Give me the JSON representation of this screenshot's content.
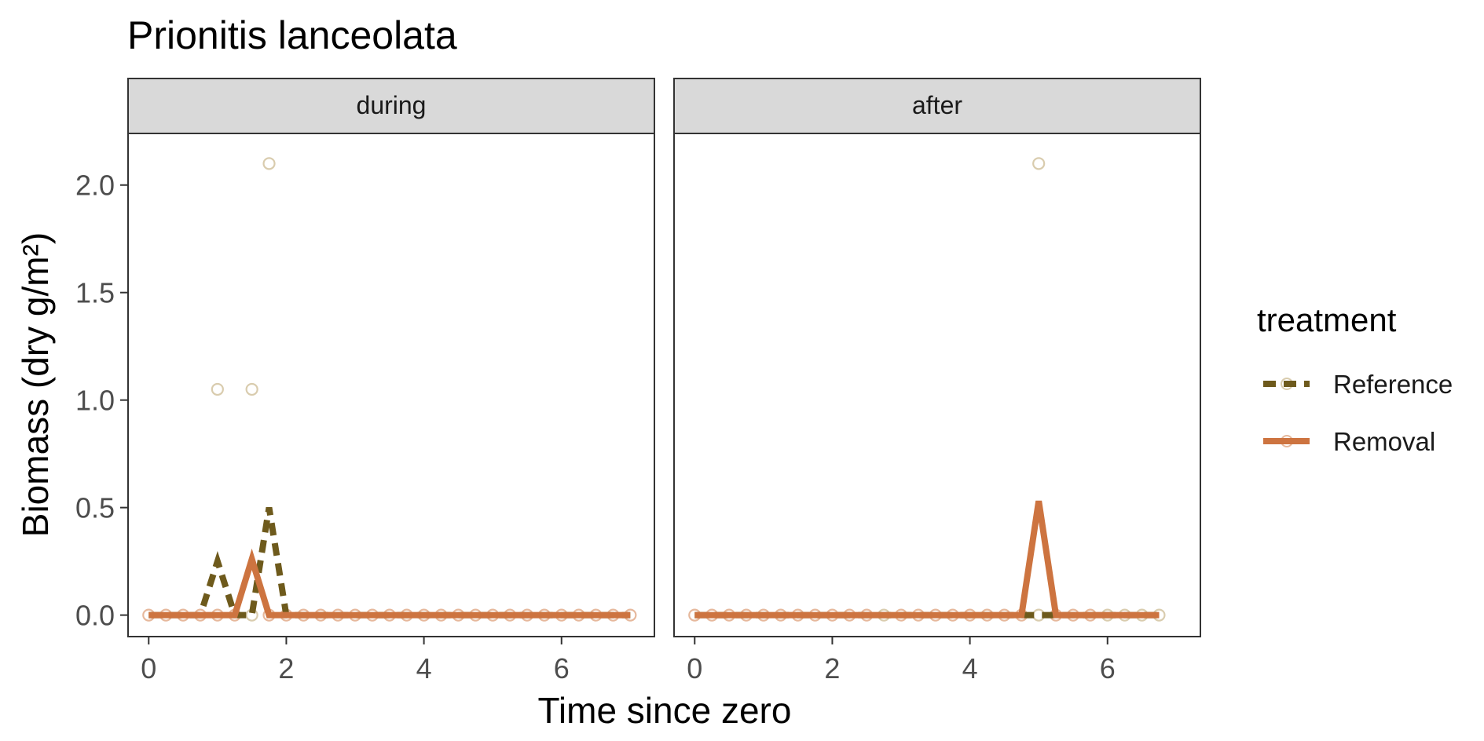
{
  "chart_data": {
    "type": "line",
    "title": "Prionitis lanceolata",
    "xlabel": "Time since zero",
    "ylabel": "Biomass (dry g/m²)",
    "xlim": [
      -0.3,
      7.35
    ],
    "ylim": [
      -0.1,
      2.24
    ],
    "x_ticks": [
      0,
      2,
      4,
      6
    ],
    "y_ticks": [
      0.0,
      0.5,
      1.0,
      1.5,
      2.0
    ],
    "y_tick_labels": [
      "0.0",
      "0.5",
      "1.0",
      "1.5",
      "2.0"
    ],
    "grid": false,
    "legend": {
      "title": "treatment",
      "placement": "right",
      "entries": [
        {
          "label": "Reference",
          "color": "#6e5a1c",
          "dash": "dashed"
        },
        {
          "label": "Removal",
          "color": "#cd7440",
          "dash": "solid"
        }
      ]
    },
    "colors": {
      "reference": "#6e5a1c",
      "removal": "#cd7440",
      "reference_point": "#d9ccae",
      "removal_point": "#e6b89c",
      "strip_fill": "#d9d9d9",
      "panel_border": "#333333"
    },
    "panels": [
      {
        "label": "during",
        "series": [
          {
            "name": "Reference",
            "x": [
              0,
              0.25,
              0.5,
              0.75,
              1.0,
              1.25,
              1.5,
              1.75,
              2.0,
              2.25,
              2.5,
              2.75,
              3.0,
              3.25,
              3.5,
              3.75,
              4.0,
              4.25,
              4.5,
              4.75,
              5.0,
              5.25,
              5.5,
              5.75,
              6.0,
              6.25,
              6.5,
              6.75,
              7.0
            ],
            "y": [
              0,
              0,
              0,
              0,
              0.25,
              0,
              0,
              0.5,
              0,
              0,
              0,
              0,
              0,
              0,
              0,
              0,
              0,
              0,
              0,
              0,
              0,
              0,
              0,
              0,
              0,
              0,
              0,
              0,
              0
            ]
          },
          {
            "name": "Removal",
            "x": [
              0,
              0.25,
              0.5,
              0.75,
              1.0,
              1.25,
              1.5,
              1.75,
              2.0,
              2.25,
              2.5,
              2.75,
              3.0,
              3.25,
              3.5,
              3.75,
              4.0,
              4.25,
              4.5,
              4.75,
              5.0,
              5.25,
              5.5,
              5.75,
              6.0,
              6.25,
              6.5,
              6.75,
              7.0
            ],
            "y": [
              0,
              0,
              0,
              0,
              0,
              0,
              0.26,
              0,
              0,
              0,
              0,
              0,
              0,
              0,
              0,
              0,
              0,
              0,
              0,
              0,
              0,
              0,
              0,
              0,
              0,
              0,
              0,
              0,
              0
            ]
          }
        ],
        "points": [
          {
            "x": 0,
            "y": 0,
            "t": "Removal"
          },
          {
            "x": 0.25,
            "y": 0,
            "t": "Removal"
          },
          {
            "x": 0.5,
            "y": 0,
            "t": "Removal"
          },
          {
            "x": 0.75,
            "y": 0,
            "t": "Removal"
          },
          {
            "x": 1.0,
            "y": 0,
            "t": "Removal"
          },
          {
            "x": 1.25,
            "y": 0,
            "t": "Removal"
          },
          {
            "x": 1.5,
            "y": 0,
            "t": "Reference"
          },
          {
            "x": 1.75,
            "y": 0,
            "t": "Removal"
          },
          {
            "x": 2.0,
            "y": 0,
            "t": "Removal"
          },
          {
            "x": 2.25,
            "y": 0,
            "t": "Removal"
          },
          {
            "x": 2.5,
            "y": 0,
            "t": "Removal"
          },
          {
            "x": 2.75,
            "y": 0,
            "t": "Removal"
          },
          {
            "x": 3.0,
            "y": 0,
            "t": "Removal"
          },
          {
            "x": 3.25,
            "y": 0,
            "t": "Removal"
          },
          {
            "x": 3.5,
            "y": 0,
            "t": "Removal"
          },
          {
            "x": 3.75,
            "y": 0,
            "t": "Removal"
          },
          {
            "x": 4.0,
            "y": 0,
            "t": "Removal"
          },
          {
            "x": 4.25,
            "y": 0,
            "t": "Removal"
          },
          {
            "x": 4.5,
            "y": 0,
            "t": "Removal"
          },
          {
            "x": 4.75,
            "y": 0,
            "t": "Removal"
          },
          {
            "x": 5.0,
            "y": 0,
            "t": "Removal"
          },
          {
            "x": 5.25,
            "y": 0,
            "t": "Removal"
          },
          {
            "x": 5.5,
            "y": 0,
            "t": "Removal"
          },
          {
            "x": 5.75,
            "y": 0,
            "t": "Removal"
          },
          {
            "x": 6.0,
            "y": 0,
            "t": "Removal"
          },
          {
            "x": 6.25,
            "y": 0,
            "t": "Removal"
          },
          {
            "x": 6.5,
            "y": 0,
            "t": "Removal"
          },
          {
            "x": 6.75,
            "y": 0,
            "t": "Removal"
          },
          {
            "x": 7.0,
            "y": 0,
            "t": "Removal"
          },
          {
            "x": 1.0,
            "y": 1.05,
            "t": "Reference"
          },
          {
            "x": 1.5,
            "y": 1.05,
            "t": "Reference"
          },
          {
            "x": 1.75,
            "y": 2.1,
            "t": "Reference"
          }
        ]
      },
      {
        "label": "after",
        "series": [
          {
            "name": "Reference",
            "x": [
              0,
              0.25,
              0.5,
              0.75,
              1.0,
              1.25,
              1.5,
              1.75,
              2.0,
              2.25,
              2.5,
              2.75,
              3.0,
              3.25,
              3.5,
              3.75,
              4.0,
              4.25,
              4.5,
              4.75,
              5.0,
              5.25,
              5.5,
              5.75,
              6.0,
              6.25,
              6.5,
              6.75
            ],
            "y": [
              0,
              0,
              0,
              0,
              0,
              0,
              0,
              0,
              0,
              0,
              0,
              0,
              0,
              0,
              0,
              0,
              0,
              0,
              0,
              0,
              0,
              0,
              0,
              0,
              0,
              0,
              0,
              0
            ]
          },
          {
            "name": "Removal",
            "x": [
              0,
              0.25,
              0.5,
              0.75,
              1.0,
              1.25,
              1.5,
              1.75,
              2.0,
              2.25,
              2.5,
              2.75,
              3.0,
              3.25,
              3.5,
              3.75,
              4.0,
              4.25,
              4.5,
              4.75,
              5.0,
              5.25,
              5.5,
              5.75,
              6.0,
              6.25,
              6.5,
              6.75
            ],
            "y": [
              0,
              0,
              0,
              0,
              0,
              0,
              0,
              0,
              0,
              0,
              0,
              0,
              0,
              0,
              0,
              0,
              0,
              0,
              0,
              0,
              0.53,
              0,
              0,
              0,
              0,
              0,
              0,
              0
            ]
          }
        ],
        "points": [
          {
            "x": 0,
            "y": 0,
            "t": "Removal"
          },
          {
            "x": 0.25,
            "y": 0,
            "t": "Removal"
          },
          {
            "x": 0.5,
            "y": 0,
            "t": "Removal"
          },
          {
            "x": 0.75,
            "y": 0,
            "t": "Removal"
          },
          {
            "x": 1.0,
            "y": 0,
            "t": "Removal"
          },
          {
            "x": 1.25,
            "y": 0,
            "t": "Removal"
          },
          {
            "x": 1.5,
            "y": 0,
            "t": "Removal"
          },
          {
            "x": 1.75,
            "y": 0,
            "t": "Removal"
          },
          {
            "x": 2.0,
            "y": 0,
            "t": "Removal"
          },
          {
            "x": 2.25,
            "y": 0,
            "t": "Removal"
          },
          {
            "x": 2.5,
            "y": 0,
            "t": "Removal"
          },
          {
            "x": 2.75,
            "y": 0,
            "t": "Reference"
          },
          {
            "x": 3.0,
            "y": 0,
            "t": "Removal"
          },
          {
            "x": 3.25,
            "y": 0,
            "t": "Removal"
          },
          {
            "x": 3.5,
            "y": 0,
            "t": "Removal"
          },
          {
            "x": 3.75,
            "y": 0,
            "t": "Removal"
          },
          {
            "x": 4.0,
            "y": 0,
            "t": "Removal"
          },
          {
            "x": 4.25,
            "y": 0,
            "t": "Removal"
          },
          {
            "x": 4.5,
            "y": 0,
            "t": "Removal"
          },
          {
            "x": 4.75,
            "y": 0,
            "t": "Removal"
          },
          {
            "x": 5.0,
            "y": 0,
            "t": "Reference"
          },
          {
            "x": 5.25,
            "y": 0,
            "t": "Removal"
          },
          {
            "x": 5.5,
            "y": 0,
            "t": "Removal"
          },
          {
            "x": 5.75,
            "y": 0,
            "t": "Removal"
          },
          {
            "x": 6.0,
            "y": 0,
            "t": "Reference"
          },
          {
            "x": 6.25,
            "y": 0,
            "t": "Reference"
          },
          {
            "x": 6.5,
            "y": 0,
            "t": "Reference"
          },
          {
            "x": 6.75,
            "y": 0,
            "t": "Reference"
          },
          {
            "x": 5.0,
            "y": 2.1,
            "t": "Reference"
          }
        ]
      }
    ]
  }
}
